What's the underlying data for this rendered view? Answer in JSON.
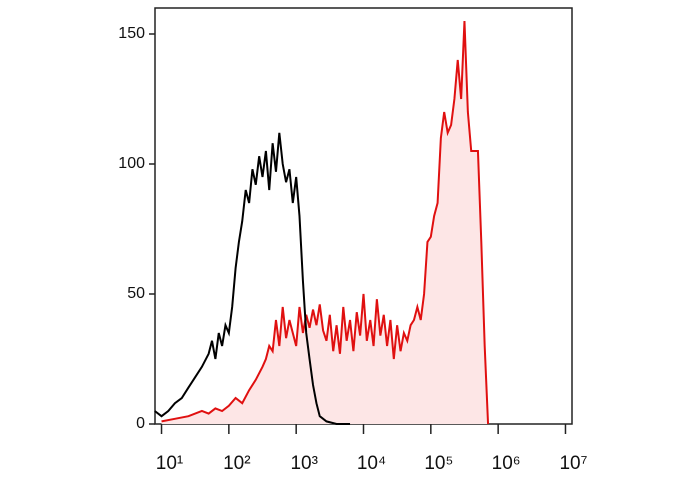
{
  "chart_data": {
    "type": "histogram-overlay",
    "xscale": "log",
    "xlim": [
      8,
      12500000
    ],
    "ylim": [
      0,
      160
    ],
    "xticks": [
      {
        "value": 10,
        "label": "10¹"
      },
      {
        "value": 100,
        "label": "10²"
      },
      {
        "value": 1000,
        "label": "10³"
      },
      {
        "value": 10000,
        "label": "10⁴"
      },
      {
        "value": 100000,
        "label": "10⁵"
      },
      {
        "value": 1000000,
        "label": "10⁶"
      },
      {
        "value": 10000000,
        "label": "10⁷"
      }
    ],
    "yticks": [
      0,
      50,
      100,
      150
    ],
    "series": [
      {
        "color": "#000000",
        "x": [
          7.94,
          10,
          12.6,
          15.8,
          20,
          25.1,
          31.6,
          39.8,
          50.1,
          56.2,
          63.1,
          70.8,
          79.4,
          89.1,
          100,
          112,
          126,
          141,
          158,
          178,
          200,
          224,
          251,
          282,
          316,
          355,
          398,
          447,
          501,
          562,
          631,
          708,
          794,
          891,
          1000,
          1120,
          1260,
          1410,
          1580,
          1780,
          2000,
          2240,
          2820,
          3980,
          6310
        ],
        "values": [
          5,
          3,
          5,
          8,
          10,
          14,
          18,
          22,
          27,
          32,
          25,
          35,
          30,
          38,
          35,
          45,
          60,
          70,
          78,
          90,
          85,
          98,
          92,
          103,
          95,
          105,
          90,
          108,
          97,
          112,
          100,
          93,
          98,
          85,
          95,
          80,
          55,
          35,
          25,
          15,
          8,
          3,
          1,
          0,
          0
        ]
      },
      {
        "color": "#e01010",
        "fill": "#fde6e6",
        "x": [
          10,
          15.8,
          25.1,
          39.8,
          50.1,
          63.1,
          79.4,
          100,
          126,
          158,
          200,
          251,
          316,
          355,
          398,
          447,
          501,
          562,
          631,
          708,
          794,
          891,
          1000,
          1120,
          1260,
          1410,
          1580,
          1780,
          2000,
          2240,
          2510,
          2820,
          3160,
          3550,
          3980,
          4470,
          5010,
          5620,
          6310,
          7080,
          7940,
          8910,
          10000,
          11200,
          12600,
          14100,
          15800,
          17800,
          20000,
          22400,
          25100,
          28200,
          31600,
          35500,
          39800,
          44700,
          50100,
          56200,
          63100,
          70800,
          79400,
          89100,
          100000,
          112000,
          126000,
          141000,
          158000,
          178000,
          200000,
          224000,
          251000,
          282000,
          316000,
          355000,
          398000,
          447000,
          501000,
          562000,
          631000,
          708000
        ],
        "values": [
          1,
          2,
          3,
          5,
          4,
          6,
          5,
          7,
          10,
          8,
          13,
          17,
          22,
          25,
          30,
          28,
          40,
          30,
          45,
          33,
          40,
          35,
          30,
          45,
          35,
          42,
          37,
          44,
          38,
          46,
          36,
          32,
          42,
          28,
          38,
          27,
          45,
          32,
          40,
          28,
          43,
          34,
          50,
          32,
          40,
          30,
          48,
          34,
          42,
          30,
          40,
          25,
          38,
          28,
          35,
          32,
          38,
          40,
          45,
          40,
          50,
          70,
          72,
          80,
          85,
          110,
          120,
          112,
          115,
          125,
          140,
          125,
          155,
          120,
          105,
          105,
          105,
          70,
          30,
          0
        ]
      }
    ]
  }
}
